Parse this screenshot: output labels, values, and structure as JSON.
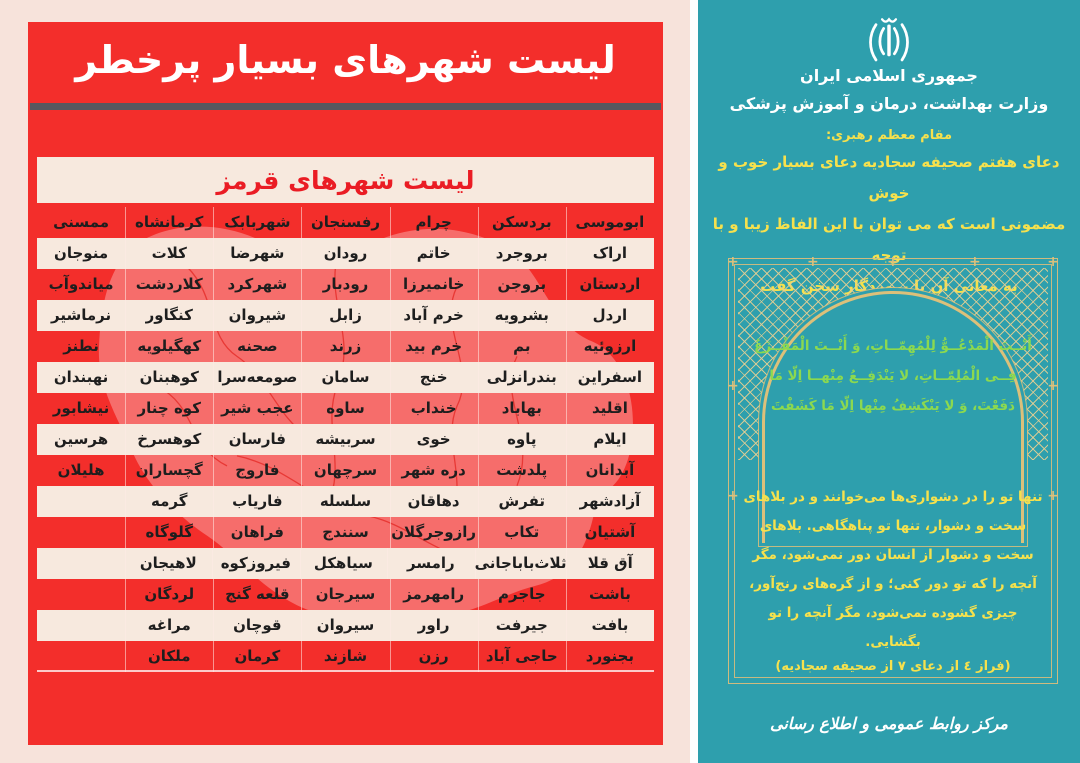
{
  "colors": {
    "page_bg": "#F7E3DB",
    "red": "#F32E2B",
    "cream": "#F7E9DE",
    "title_rule": "#57575F",
    "subtitle_text": "#EA1C24",
    "cell_text": "#1E1E1E",
    "teal": "#2E9FAD",
    "yellow": "#F6E14D",
    "green": "#8CD94F",
    "gold": "#DCC07A",
    "white": "#FFFFFF"
  },
  "left_panel": {
    "title": "لیست شهرهای بسیار پرخطر",
    "subtitle": "لیست شهرهای قرمز",
    "map_icon": "iran-map",
    "table": {
      "rows": [
        [
          "ابوموسی",
          "بردسکن",
          "چرام",
          "رفسنجان",
          "شهربابک",
          "کرمانشاه",
          "ممسنی"
        ],
        [
          "اراک",
          "بروجرد",
          "خاتم",
          "رودان",
          "شهرضا",
          "کلات",
          "منوجان"
        ],
        [
          "اردستان",
          "بروجن",
          "خانمیرزا",
          "رودبار",
          "شهرکرد",
          "کلاردشت",
          "میاندوآب"
        ],
        [
          "اردل",
          "بشرویه",
          "خرم آباد",
          "زابل",
          "شیروان",
          "کنگاور",
          "نرماشیر"
        ],
        [
          "ارزوئیه",
          "بم",
          "خرم بید",
          "زرند",
          "صحنه",
          "کهگیلویه",
          "نطنز"
        ],
        [
          "اسفراین",
          "بندرانزلی",
          "خنج",
          "سامان",
          "صومعه‌سرا",
          "کوهبنان",
          "نهبندان"
        ],
        [
          "اقلید",
          "بهاباد",
          "خنداب",
          "ساوه",
          "عجب شیر",
          "کوه چنار",
          "نیشابور"
        ],
        [
          "ایلام",
          "پاوه",
          "خوی",
          "سربیشه",
          "فارسان",
          "کوهسرخ",
          "هرسین"
        ],
        [
          "آبدانان",
          "پلدشت",
          "دره شهر",
          "سرچهان",
          "فاروج",
          "گچساران",
          "هلیلان"
        ],
        [
          "آزادشهر",
          "تفرش",
          "دهاقان",
          "سلسله",
          "فاریاب",
          "گرمه",
          ""
        ],
        [
          "آشتیان",
          "تکاب",
          "رازوجرگلان",
          "سنندج",
          "فراهان",
          "گلوگاه",
          ""
        ],
        [
          "آق قلا",
          "ثلاث‌باباجانی",
          "رامسر",
          "سیاهکل",
          "فیروزکوه",
          "لاهیجان",
          ""
        ],
        [
          "باشت",
          "جاجرم",
          "رامهرمز",
          "سیرجان",
          "قلعه گنج",
          "لردگان",
          ""
        ],
        [
          "بافت",
          "جیرفت",
          "راور",
          "سیروان",
          "قوچان",
          "مراغه",
          ""
        ],
        [
          "بجنورد",
          "حاجی آباد",
          "رزن",
          "شازند",
          "کرمان",
          "ملکان",
          ""
        ]
      ]
    }
  },
  "right_panel": {
    "emblem_icon": "iran-emblem",
    "gov_line1": "جمهوری اسلامی ایران",
    "gov_line2": "وزارت بهداشت، درمان و آموزش پزشکی",
    "leader_label": "مقام معظم رهبری:",
    "leader_quote": "دعای هفتم صحیفه سجادیه دعای بسیار خوب و خوش\nمضمونی است که می توان با این الفاظ زیبا و با توجه\nبه معانی آن با پروردگار سخن گفت",
    "arabic_prayer": "أَنْــتَ الْمَدْعُــوُّ لِلْمُهِمّــاتِ، وَ أَنْــتَ الْمَفْــزَعُ\nفِــی الْمُلِمّــاتِ، لا یَنْدَفِــعُ مِنْهــا اِلّا مَا\nدَفَعْتَ، وَ لا یَنْکَشِفُ مِنْها اِلّا مَا کَشَفْتَ",
    "translation": "تنها تو را در دشواری‌ها می‌خوانند و در بلاهای\nسخت و دشوار، تنها تو پناهگاهی. بلاهای\nسخت و دشوار از انسان دور نمی‌شود، مگر\nآنچه را که تو دور کنی؛ و از گره‌های رنج‌آور،\nچیزی گشوده نمی‌شود، مگر آنچه را تو\nبگشایی.",
    "citation": "(فراز ٤ از دعای ۷ از صحیفه سجادیه)",
    "footer": "مرکز روابط عمومی و اطلاع رسانی"
  }
}
